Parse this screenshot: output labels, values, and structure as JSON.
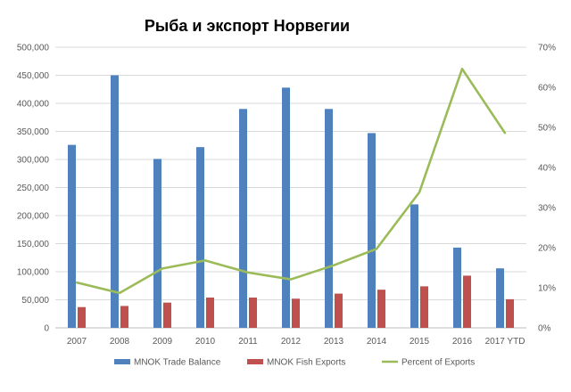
{
  "chart_data": {
    "type": "bar",
    "title": "Рыба и экспорт Норвегии",
    "categories": [
      "2007",
      "2008",
      "2009",
      "2010",
      "2011",
      "2012",
      "2013",
      "2014",
      "2015",
      "2016",
      "2017 YTD"
    ],
    "series": [
      {
        "name": "MNOK Trade Balance",
        "type": "bar",
        "axis": "left",
        "color": "#4f81bd",
        "values": [
          326000,
          450000,
          301000,
          322000,
          390000,
          428000,
          390000,
          347000,
          220000,
          143000,
          106000
        ]
      },
      {
        "name": "MNOK Fish Exports",
        "type": "bar",
        "axis": "left",
        "color": "#c0504d",
        "values": [
          37000,
          39000,
          45000,
          54000,
          54000,
          52000,
          61000,
          68000,
          74000,
          93000,
          51000
        ]
      },
      {
        "name": "Percent of Exports",
        "type": "line",
        "axis": "right",
        "color": "#9bbb59",
        "values": [
          11.3,
          8.7,
          14.8,
          16.8,
          13.8,
          12.1,
          15.6,
          19.7,
          33.8,
          64.6,
          48.6
        ]
      }
    ],
    "y_left": {
      "min": 0,
      "max": 500000,
      "step": 50000,
      "tick_labels": [
        "0",
        "50,000",
        "100,000",
        "150,000",
        "200,000",
        "250,000",
        "300,000",
        "350,000",
        "400,000",
        "450,000",
        "500,000"
      ]
    },
    "y_right": {
      "min": 0,
      "max": 70,
      "step": 10,
      "tick_labels": [
        "0%",
        "10%",
        "20%",
        "30%",
        "40%",
        "50%",
        "60%",
        "70%"
      ]
    },
    "grid": true,
    "legend": "bottom"
  }
}
